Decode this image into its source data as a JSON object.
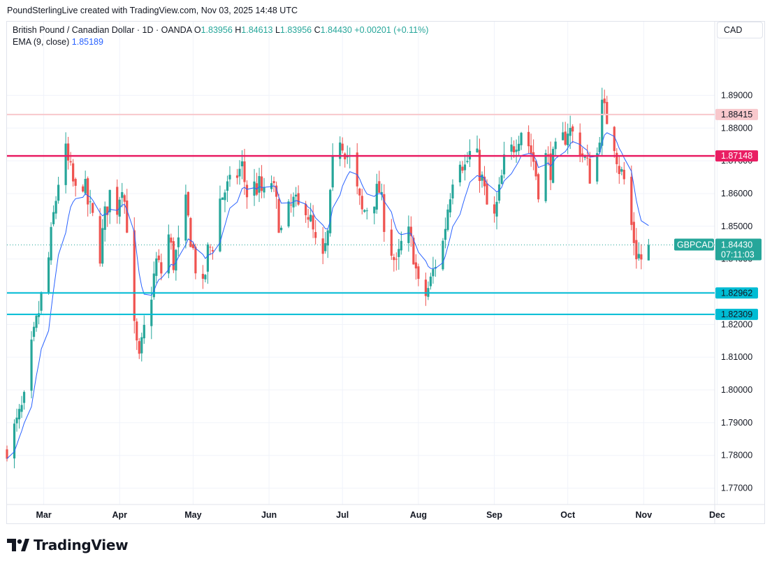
{
  "header": {
    "attribution": "PoundSterlingLive created with TradingView.com, Nov 03, 2025 14:48 UTC"
  },
  "legend": {
    "symbol_line": "British Pound / Canadian Dollar · 1D · OANDA",
    "o_label": "O",
    "o_value": "1.83956",
    "h_label": "H",
    "h_value": "1.84613",
    "l_label": "L",
    "l_value": "1.83956",
    "c_label": "C",
    "c_value": "1.84430",
    "change": "+0.00201 (+0.11%)",
    "ema_label": "EMA (9, close)",
    "ema_value": "1.85189"
  },
  "unit_label": "CAD",
  "brand": {
    "name": "TradingView"
  },
  "colors": {
    "up": "#26a69a",
    "down": "#ef5350",
    "ema": "#2962ff",
    "resistance_pink": "#e91e63",
    "resistance_light": "#f8c8cc",
    "support_cyan": "#00bcd4",
    "grid": "#f0f3fa",
    "axis_text": "#131722"
  },
  "chart_data": {
    "type": "candlestick",
    "symbol": "GBPCAD",
    "ylim": [
      1.765,
      1.9125
    ],
    "y_ticks": [
      "1.77000",
      "1.78000",
      "1.79000",
      "1.80000",
      "1.81000",
      "1.82000",
      "1.83000",
      "1.84000",
      "1.85000",
      "1.86000",
      "1.87000",
      "1.88000",
      "1.89000"
    ],
    "x_ticks": [
      {
        "label": "Mar",
        "date": "2025-03-01"
      },
      {
        "label": "Apr",
        "date": "2025-04-01"
      },
      {
        "label": "May",
        "date": "2025-05-01"
      },
      {
        "label": "Jun",
        "date": "2025-06-01"
      },
      {
        "label": "Jul",
        "date": "2025-07-01"
      },
      {
        "label": "Aug",
        "date": "2025-08-01"
      },
      {
        "label": "Sep",
        "date": "2025-09-01"
      },
      {
        "label": "Oct",
        "date": "2025-10-01"
      },
      {
        "label": "Nov",
        "date": "2025-11-01"
      },
      {
        "label": "Dec",
        "date": "2025-12-01"
      }
    ],
    "x_start": "2025-02-14",
    "x_end": "2025-11-30",
    "ohlc_closes": [
      [
        "2025-02-14",
        1.783
      ],
      [
        "2025-02-18",
        1.7895
      ],
      [
        "2025-02-21",
        1.796
      ],
      [
        "2025-02-24",
        1.812
      ],
      [
        "2025-02-27",
        1.824
      ],
      [
        "2025-03-03",
        1.84
      ],
      [
        "2025-03-05",
        1.853
      ],
      [
        "2025-03-07",
        1.864
      ],
      [
        "2025-03-10",
        1.872
      ],
      [
        "2025-03-12",
        1.866
      ],
      [
        "2025-03-14",
        1.86
      ],
      [
        "2025-03-17",
        1.864
      ],
      [
        "2025-03-19",
        1.857
      ],
      [
        "2025-03-21",
        1.852
      ],
      [
        "2025-03-24",
        1.842
      ],
      [
        "2025-03-26",
        1.853
      ],
      [
        "2025-03-28",
        1.86
      ],
      [
        "2025-03-31",
        1.856
      ],
      [
        "2025-04-02",
        1.864
      ],
      [
        "2025-04-04",
        1.851
      ],
      [
        "2025-04-07",
        1.818
      ],
      [
        "2025-04-09",
        1.808
      ],
      [
        "2025-04-11",
        1.818
      ],
      [
        "2025-04-14",
        1.83
      ],
      [
        "2025-04-16",
        1.839
      ],
      [
        "2025-04-18",
        1.836
      ],
      [
        "2025-04-21",
        1.847
      ],
      [
        "2025-04-23",
        1.839
      ],
      [
        "2025-04-25",
        1.844
      ],
      [
        "2025-04-28",
        1.856
      ],
      [
        "2025-04-30",
        1.847
      ],
      [
        "2025-05-02",
        1.838
      ],
      [
        "2025-05-05",
        1.83
      ],
      [
        "2025-05-07",
        1.842
      ],
      [
        "2025-05-09",
        1.845
      ],
      [
        "2025-05-12",
        1.858
      ],
      [
        "2025-05-14",
        1.861
      ],
      [
        "2025-05-16",
        1.862
      ],
      [
        "2025-05-19",
        1.866
      ],
      [
        "2025-05-21",
        1.868
      ],
      [
        "2025-05-23",
        1.86
      ],
      [
        "2025-05-26",
        1.862
      ],
      [
        "2025-05-28",
        1.862
      ],
      [
        "2025-05-30",
        1.859
      ],
      [
        "2025-06-02",
        1.864
      ],
      [
        "2025-06-04",
        1.856
      ],
      [
        "2025-06-06",
        1.848
      ],
      [
        "2025-06-09",
        1.854
      ],
      [
        "2025-06-11",
        1.857
      ],
      [
        "2025-06-13",
        1.855
      ],
      [
        "2025-06-16",
        1.857
      ],
      [
        "2025-06-18",
        1.851
      ],
      [
        "2025-06-20",
        1.844
      ],
      [
        "2025-06-23",
        1.839
      ],
      [
        "2025-06-25",
        1.847
      ],
      [
        "2025-06-27",
        1.868
      ],
      [
        "2025-06-30",
        1.878
      ],
      [
        "2025-07-02",
        1.874
      ],
      [
        "2025-07-04",
        1.87
      ],
      [
        "2025-07-07",
        1.86
      ],
      [
        "2025-07-09",
        1.854
      ],
      [
        "2025-07-11",
        1.856
      ],
      [
        "2025-07-14",
        1.859
      ],
      [
        "2025-07-16",
        1.861
      ],
      [
        "2025-07-18",
        1.852
      ],
      [
        "2025-07-21",
        1.843
      ],
      [
        "2025-07-23",
        1.837
      ],
      [
        "2025-07-25",
        1.844
      ],
      [
        "2025-07-28",
        1.847
      ],
      [
        "2025-07-30",
        1.842
      ],
      [
        "2025-08-01",
        1.831
      ],
      [
        "2025-08-04",
        1.829
      ],
      [
        "2025-08-06",
        1.833
      ],
      [
        "2025-08-08",
        1.839
      ],
      [
        "2025-08-11",
        1.845
      ],
      [
        "2025-08-13",
        1.856
      ],
      [
        "2025-08-15",
        1.866
      ],
      [
        "2025-08-18",
        1.872
      ],
      [
        "2025-08-20",
        1.868
      ],
      [
        "2025-08-22",
        1.872
      ],
      [
        "2025-08-25",
        1.87
      ],
      [
        "2025-08-27",
        1.864
      ],
      [
        "2025-08-29",
        1.856
      ],
      [
        "2025-09-01",
        1.852
      ],
      [
        "2025-09-03",
        1.86
      ],
      [
        "2025-09-05",
        1.869
      ],
      [
        "2025-09-08",
        1.873
      ],
      [
        "2025-09-10",
        1.877
      ],
      [
        "2025-09-12",
        1.88
      ],
      [
        "2025-09-15",
        1.875
      ],
      [
        "2025-09-17",
        1.87
      ],
      [
        "2025-09-19",
        1.862
      ],
      [
        "2025-09-22",
        1.871
      ],
      [
        "2025-09-24",
        1.868
      ],
      [
        "2025-09-26",
        1.872
      ],
      [
        "2025-09-29",
        1.876
      ],
      [
        "2025-10-01",
        1.88
      ],
      [
        "2025-10-03",
        1.878
      ],
      [
        "2025-10-06",
        1.874
      ],
      [
        "2025-10-08",
        1.87
      ],
      [
        "2025-10-10",
        1.866
      ],
      [
        "2025-10-13",
        1.872
      ],
      [
        "2025-10-15",
        1.886
      ],
      [
        "2025-10-17",
        1.883
      ],
      [
        "2025-10-20",
        1.876
      ],
      [
        "2025-10-22",
        1.868
      ],
      [
        "2025-10-24",
        1.864
      ],
      [
        "2025-10-27",
        1.85
      ],
      [
        "2025-10-29",
        1.842
      ],
      [
        "2025-10-31",
        1.84
      ],
      [
        "2025-11-03",
        1.8443
      ]
    ],
    "ema_label": "EMA (9, close)",
    "horizontal_levels": [
      {
        "value": 1.88415,
        "label": "1.88415",
        "style": "light-red"
      },
      {
        "value": 1.87148,
        "label": "1.87148",
        "style": "pink"
      },
      {
        "value": 1.82962,
        "label": "1.82962",
        "style": "cyan"
      },
      {
        "value": 1.82309,
        "label": "1.82309",
        "style": "cyan"
      }
    ],
    "last_price": {
      "symbol": "GBPCAD",
      "value": "1.84430",
      "countdown": "07:11:03"
    },
    "grid": true
  }
}
